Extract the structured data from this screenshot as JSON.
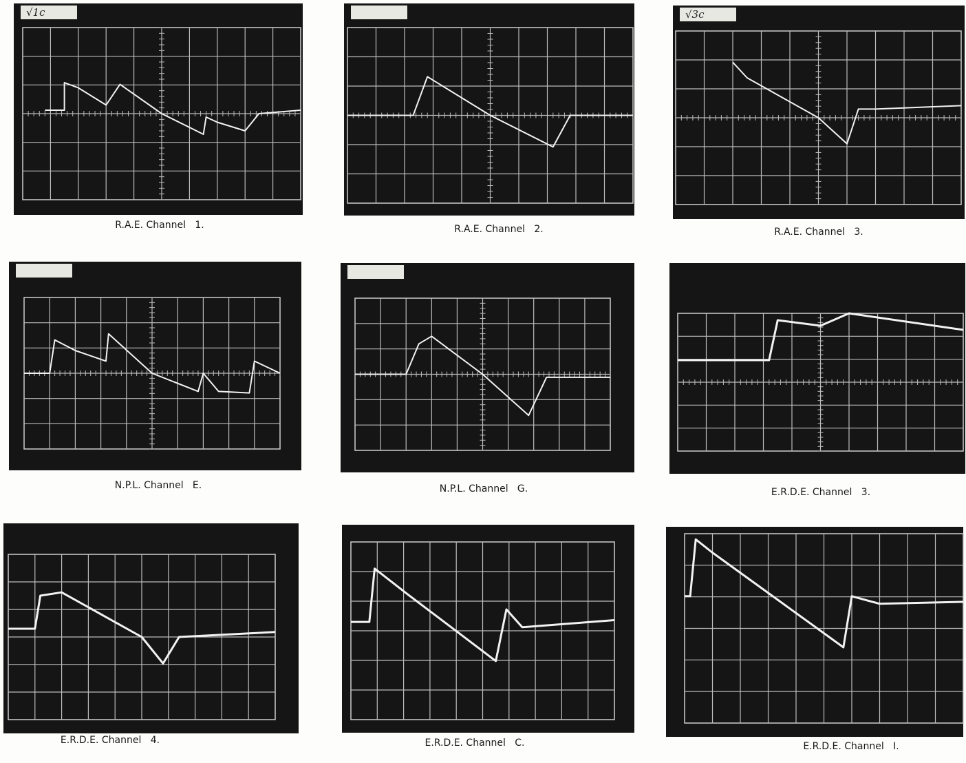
{
  "panels": [
    {
      "tag": "√1c",
      "caption": "R.A.E. Channel   1."
    },
    {
      "caption": "R.A.E. Channel   2."
    },
    {
      "tag": "√3c",
      "caption": "R.A.E. Channel   3."
    },
    {
      "caption": "N.P.L. Channel   E."
    },
    {
      "caption": "N.P.L. Channel   G."
    },
    {
      "caption": "E.R.D.E. Channel   3."
    },
    {
      "caption": "E.R.D.E. Channel   4."
    },
    {
      "caption": "E.R.D.E. Channel   C."
    },
    {
      "caption": "E.R.D.E. Channel   I."
    }
  ]
}
